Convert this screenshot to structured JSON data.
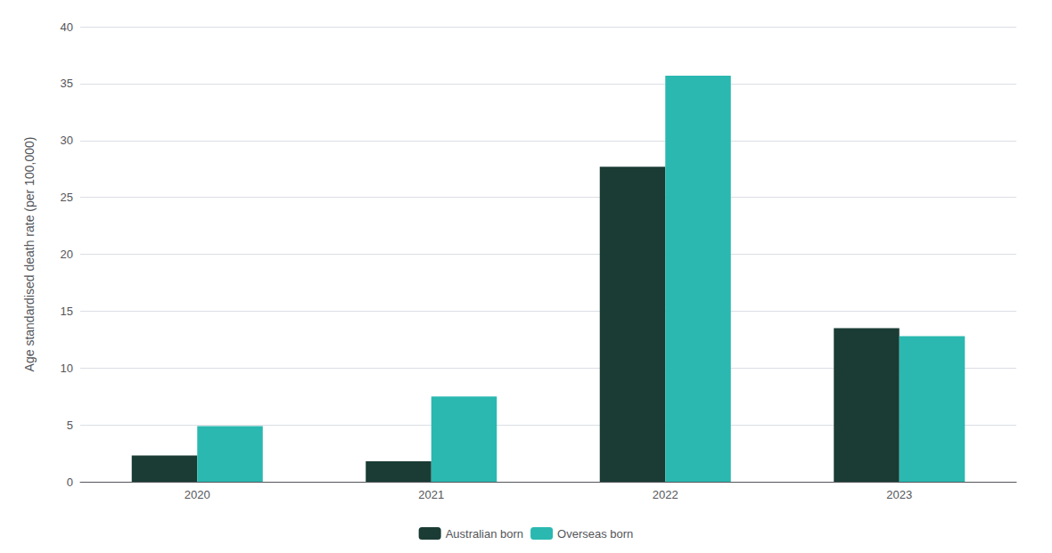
{
  "chart_data": {
    "type": "bar",
    "ylabel": "Age standardised death rate (per 100,000)",
    "categories": [
      "2020",
      "2021",
      "2022",
      "2023"
    ],
    "series": [
      {
        "name": "Australian born",
        "color": "#1a3c35",
        "values": [
          2.3,
          1.8,
          27.7,
          13.5
        ]
      },
      {
        "name": "Overseas born",
        "color": "#2ab8b0",
        "values": [
          4.9,
          7.5,
          35.7,
          12.8
        ]
      }
    ],
    "ylim": [
      0,
      40
    ],
    "yticks": [
      0,
      5,
      10,
      15,
      20,
      25,
      30,
      35,
      40
    ],
    "grid": true,
    "legend": "bottom"
  }
}
